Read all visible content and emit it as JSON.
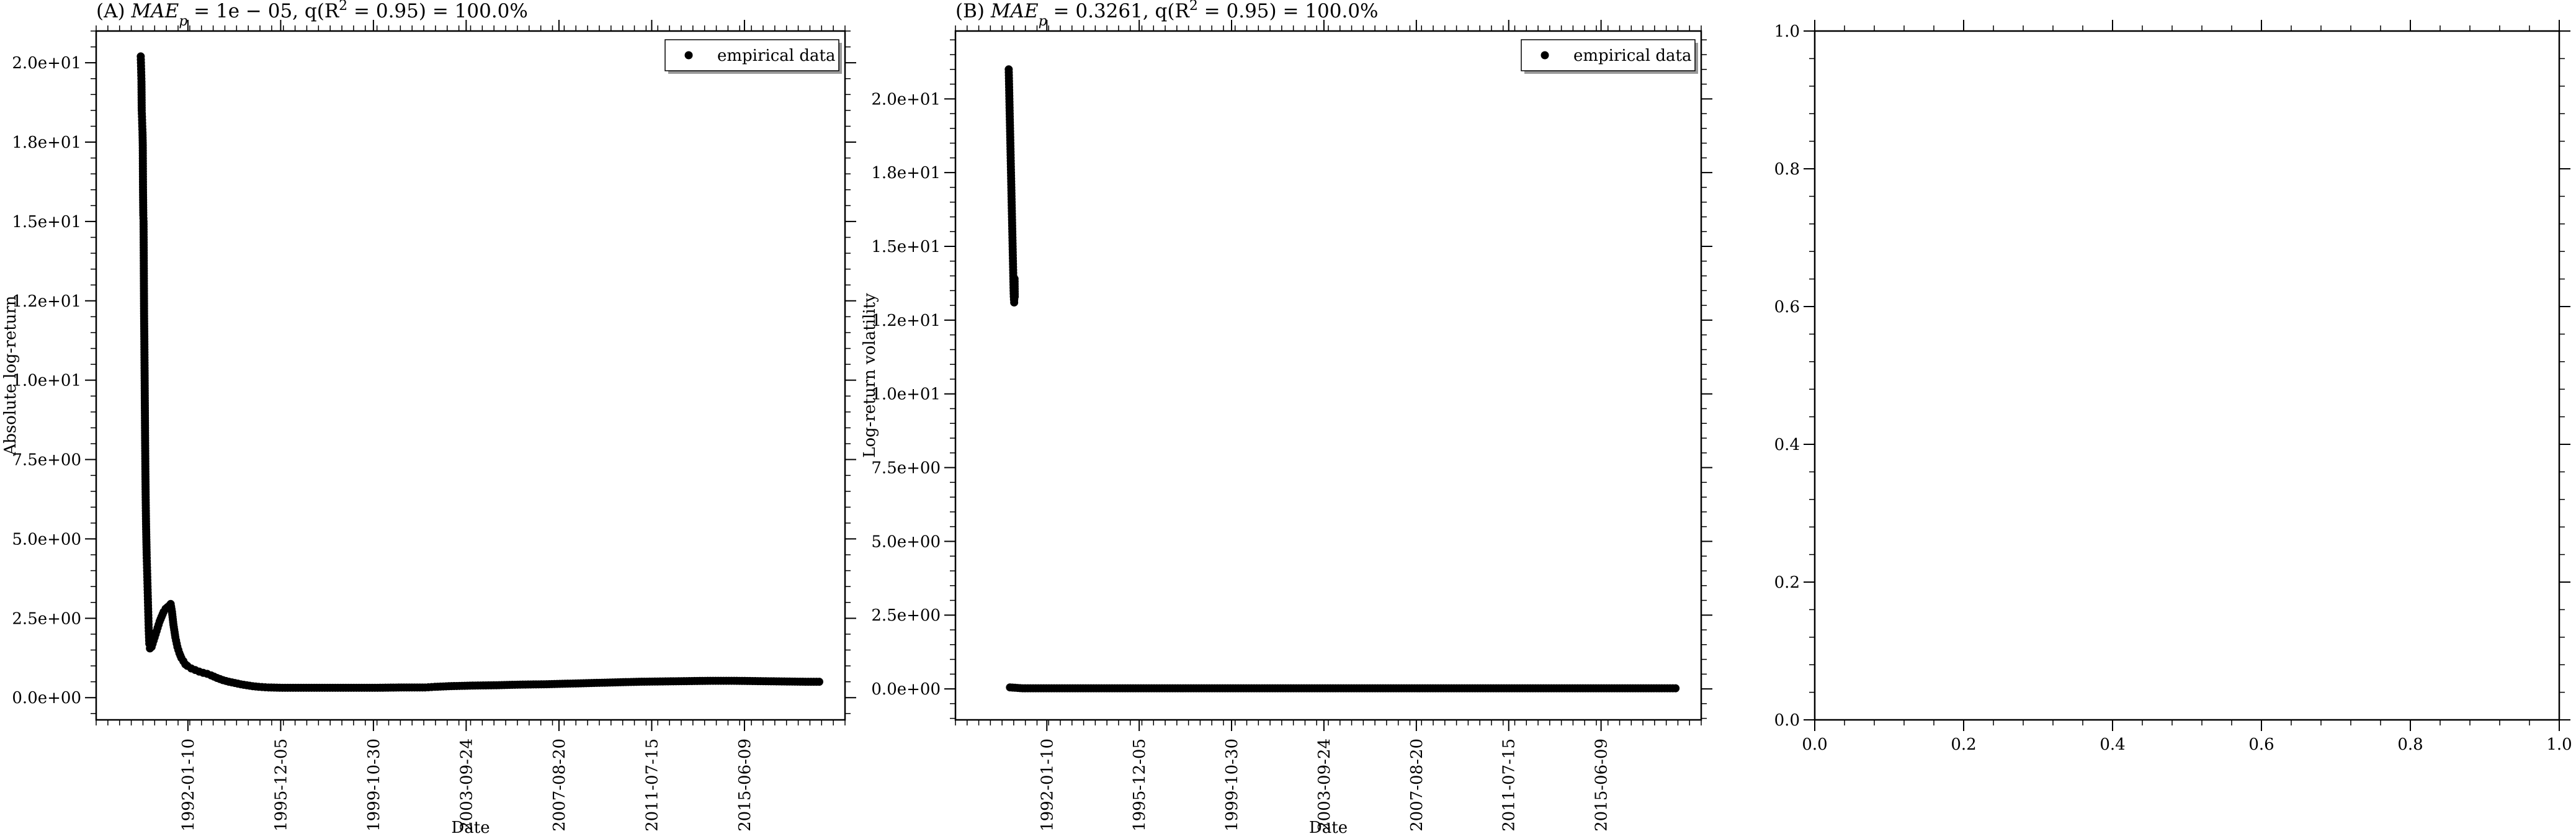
{
  "chart_data": [
    {
      "type": "scatter",
      "title": "(A) MAE_p = 1e − 05, q(R² = 0.95) = 100.0%",
      "title_prefix": "(A) ",
      "title_metric": "MAE",
      "title_metric_sub": "p",
      "title_rest": " = 1e − 05, q(R",
      "title_sup": "2",
      "title_end": " = 0.95) = 100.0%",
      "xlabel": "Date",
      "ylabel": "Absolute log-return",
      "x_ticks": [
        "1992-01-10",
        "1995-12-05",
        "1999-10-30",
        "2003-09-24",
        "2007-08-20",
        "2011-07-15",
        "2015-06-09"
      ],
      "y_ticks": [
        "0.0e+00",
        "2.5e+00",
        "5.0e+00",
        "7.5e+00",
        "1.0e+01",
        "1.2e+01",
        "1.5e+01",
        "1.8e+01",
        "2.0e+01"
      ],
      "ylim": [
        -0.7,
        21.0
      ],
      "xlim": [
        "1988-03-01",
        "2019-09-01"
      ],
      "legend": "empirical data",
      "legend_position": "top-right",
      "marker_color": "#000000",
      "series": [
        {
          "name": "empirical data",
          "points": [
            [
              "1990-01-15",
              20.2
            ],
            [
              "1990-01-18",
              20.0
            ],
            [
              "1990-01-22",
              19.7
            ],
            [
              "1990-01-26",
              19.4
            ],
            [
              "1990-01-30",
              18.5
            ],
            [
              "1990-02-03",
              18.3
            ],
            [
              "1990-02-07",
              18.0
            ],
            [
              "1990-02-11",
              17.8
            ],
            [
              "1990-02-15",
              17.4
            ],
            [
              "1990-02-19",
              16.0
            ],
            [
              "1990-02-23",
              15.2
            ],
            [
              "1990-02-27",
              15.0
            ],
            [
              "1990-03-03",
              13.6
            ],
            [
              "1990-03-07",
              12.1
            ],
            [
              "1990-03-11",
              11.3
            ],
            [
              "1990-03-15",
              10.3
            ],
            [
              "1990-03-19",
              9.2
            ],
            [
              "1990-03-23",
              8.1
            ],
            [
              "1990-03-27",
              7.2
            ],
            [
              "1990-03-31",
              6.4
            ],
            [
              "1990-04-04",
              5.8
            ],
            [
              "1990-04-08",
              5.3
            ],
            [
              "1990-04-12",
              4.9
            ],
            [
              "1990-04-16",
              4.5
            ],
            [
              "1990-04-20",
              4.2
            ],
            [
              "1990-04-24",
              3.9
            ],
            [
              "1990-04-28",
              3.6
            ],
            [
              "1990-05-02",
              3.3
            ],
            [
              "1990-05-06",
              3.0
            ],
            [
              "1990-05-10",
              2.7
            ],
            [
              "1990-05-14",
              2.4
            ],
            [
              "1990-05-18",
              2.1
            ],
            [
              "1990-05-22",
              1.9
            ],
            [
              "1990-05-26",
              1.7
            ],
            [
              "1990-06-05",
              1.55
            ],
            [
              "1990-07-01",
              1.6
            ],
            [
              "1990-08-01",
              1.8
            ],
            [
              "1990-09-01",
              2.0
            ],
            [
              "1990-10-01",
              2.2
            ],
            [
              "1990-11-01",
              2.4
            ],
            [
              "1990-12-01",
              2.55
            ],
            [
              "1991-01-01",
              2.7
            ],
            [
              "1991-02-01",
              2.8
            ],
            [
              "1991-03-01",
              2.85
            ],
            [
              "1991-04-01",
              2.9
            ],
            [
              "1991-04-20",
              2.95
            ],
            [
              "1991-05-10",
              2.7
            ],
            [
              "1991-06-01",
              2.3
            ],
            [
              "1991-07-01",
              1.9
            ],
            [
              "1991-08-01",
              1.6
            ],
            [
              "1991-09-01",
              1.4
            ],
            [
              "1991-10-01",
              1.25
            ],
            [
              "1991-11-01",
              1.15
            ],
            [
              "1991-12-01",
              1.05
            ],
            [
              "1992-01-01",
              1.0
            ],
            [
              "1992-03-01",
              0.92
            ],
            [
              "1992-05-01",
              0.87
            ],
            [
              "1992-07-01",
              0.82
            ],
            [
              "1992-09-01",
              0.78
            ],
            [
              "1992-11-01",
              0.75
            ],
            [
              "1993-01-01",
              0.7
            ],
            [
              "1993-04-01",
              0.62
            ],
            [
              "1993-07-01",
              0.55
            ],
            [
              "1993-10-01",
              0.5
            ],
            [
              "1994-01-01",
              0.46
            ],
            [
              "1994-04-01",
              0.42
            ],
            [
              "1994-07-01",
              0.39
            ],
            [
              "1994-10-01",
              0.36
            ],
            [
              "1995-01-01",
              0.34
            ],
            [
              "1995-06-01",
              0.32
            ],
            [
              "1996-01-01",
              0.31
            ],
            [
              "1997-01-01",
              0.31
            ],
            [
              "1998-01-01",
              0.31
            ],
            [
              "1999-01-01",
              0.31
            ],
            [
              "2000-01-01",
              0.31
            ],
            [
              "2001-01-01",
              0.32
            ],
            [
              "2002-01-01",
              0.32
            ],
            [
              "2002-06-01",
              0.34
            ],
            [
              "2003-01-01",
              0.36
            ],
            [
              "2004-01-01",
              0.38
            ],
            [
              "2005-01-01",
              0.39
            ],
            [
              "2006-01-01",
              0.41
            ],
            [
              "2007-01-01",
              0.42
            ],
            [
              "2008-01-01",
              0.44
            ],
            [
              "2009-01-01",
              0.46
            ],
            [
              "2010-01-01",
              0.48
            ],
            [
              "2011-01-01",
              0.5
            ],
            [
              "2012-01-01",
              0.51
            ],
            [
              "2013-01-01",
              0.52
            ],
            [
              "2014-01-01",
              0.53
            ],
            [
              "2015-01-01",
              0.53
            ],
            [
              "2016-01-01",
              0.52
            ],
            [
              "2017-01-01",
              0.51
            ],
            [
              "2018-01-01",
              0.5
            ],
            [
              "2018-08-01",
              0.5
            ]
          ]
        }
      ]
    },
    {
      "type": "scatter",
      "title": "(B) MAE_p = 0.3261, q(R² = 0.95) = 100.0%",
      "title_prefix": "(B) ",
      "title_metric": "MAE",
      "title_metric_sub": "p",
      "title_rest": " = 0.3261, q(R",
      "title_sup": "2",
      "title_end": " = 0.95) = 100.0%",
      "xlabel": "Date",
      "ylabel": "Log-return volatility",
      "x_ticks": [
        "1992-01-10",
        "1995-12-05",
        "1999-10-30",
        "2003-09-24",
        "2007-08-20",
        "2011-07-15",
        "2015-06-09"
      ],
      "y_ticks": [
        "0.0e+00",
        "2.5e+00",
        "5.0e+00",
        "7.5e+00",
        "1.0e+01",
        "1.2e+01",
        "1.5e+01",
        "1.8e+01",
        "2.0e+01"
      ],
      "ylim": [
        -1.05,
        22.3
      ],
      "xlim": [
        "1988-03-01",
        "2019-09-01"
      ],
      "legend": "empirical data",
      "legend_position": "top-right",
      "marker_color": "#000000",
      "series": [
        {
          "name": "empirical data",
          "points": [
            [
              "1990-06-01",
              21.0
            ],
            [
              "1990-06-04",
              20.7
            ],
            [
              "1990-06-07",
              20.4
            ],
            [
              "1990-06-10",
              20.1
            ],
            [
              "1990-06-13",
              19.8
            ],
            [
              "1990-06-16",
              19.5
            ],
            [
              "1990-06-19",
              19.2
            ],
            [
              "1990-06-22",
              18.9
            ],
            [
              "1990-06-25",
              18.6
            ],
            [
              "1990-06-28",
              18.3
            ],
            [
              "1990-07-01",
              18.0
            ],
            [
              "1990-07-04",
              17.7
            ],
            [
              "1990-07-07",
              17.4
            ],
            [
              "1990-07-10",
              17.1
            ],
            [
              "1990-07-13",
              16.8
            ],
            [
              "1990-07-16",
              16.5
            ],
            [
              "1990-07-19",
              16.2
            ],
            [
              "1990-07-22",
              15.9
            ],
            [
              "1990-07-25",
              15.6
            ],
            [
              "1990-07-28",
              15.3
            ],
            [
              "1990-07-31",
              15.0
            ],
            [
              "1990-08-03",
              14.7
            ],
            [
              "1990-08-06",
              14.4
            ],
            [
              "1990-08-09",
              14.1
            ],
            [
              "1990-08-12",
              13.8
            ],
            [
              "1990-08-15",
              13.5
            ],
            [
              "1990-08-18",
              13.3
            ],
            [
              "1990-08-21",
              13.2
            ],
            [
              "1990-08-24",
              13.1
            ],
            [
              "1990-08-27",
              13.5
            ],
            [
              "1990-08-30",
              13.9
            ],
            [
              "1990-09-02",
              13.3
            ],
            [
              "1990-06-20",
              0.05
            ],
            [
              "1991-01-01",
              0.02
            ],
            [
              "1992-01-01",
              0.02
            ],
            [
              "1993-01-01",
              0.02
            ],
            [
              "1994-01-01",
              0.02
            ],
            [
              "1995-01-01",
              0.02
            ],
            [
              "1996-01-01",
              0.02
            ],
            [
              "1997-01-01",
              0.02
            ],
            [
              "1998-01-01",
              0.02
            ],
            [
              "1999-01-01",
              0.02
            ],
            [
              "2000-01-01",
              0.02
            ],
            [
              "2001-01-01",
              0.02
            ],
            [
              "2002-01-01",
              0.02
            ],
            [
              "2003-01-01",
              0.02
            ],
            [
              "2004-01-01",
              0.02
            ],
            [
              "2005-01-01",
              0.02
            ],
            [
              "2006-01-01",
              0.02
            ],
            [
              "2007-01-01",
              0.02
            ],
            [
              "2008-01-01",
              0.02
            ],
            [
              "2009-01-01",
              0.02
            ],
            [
              "2010-01-01",
              0.02
            ],
            [
              "2011-01-01",
              0.02
            ],
            [
              "2012-01-01",
              0.02
            ],
            [
              "2013-01-01",
              0.02
            ],
            [
              "2014-01-01",
              0.02
            ],
            [
              "2015-01-01",
              0.02
            ],
            [
              "2016-01-01",
              0.02
            ],
            [
              "2017-01-01",
              0.02
            ],
            [
              "2018-01-01",
              0.02
            ],
            [
              "2018-08-01",
              0.02
            ]
          ]
        }
      ]
    },
    {
      "type": "scatter",
      "title": "",
      "xlabel": "",
      "ylabel": "",
      "x_ticks": [
        "0.0",
        "0.2",
        "0.4",
        "0.6",
        "0.8",
        "1.0"
      ],
      "y_ticks": [
        "0.0",
        "0.2",
        "0.4",
        "0.6",
        "0.8",
        "1.0"
      ],
      "xlim": [
        0,
        1
      ],
      "ylim": [
        0,
        1
      ],
      "series": []
    }
  ]
}
